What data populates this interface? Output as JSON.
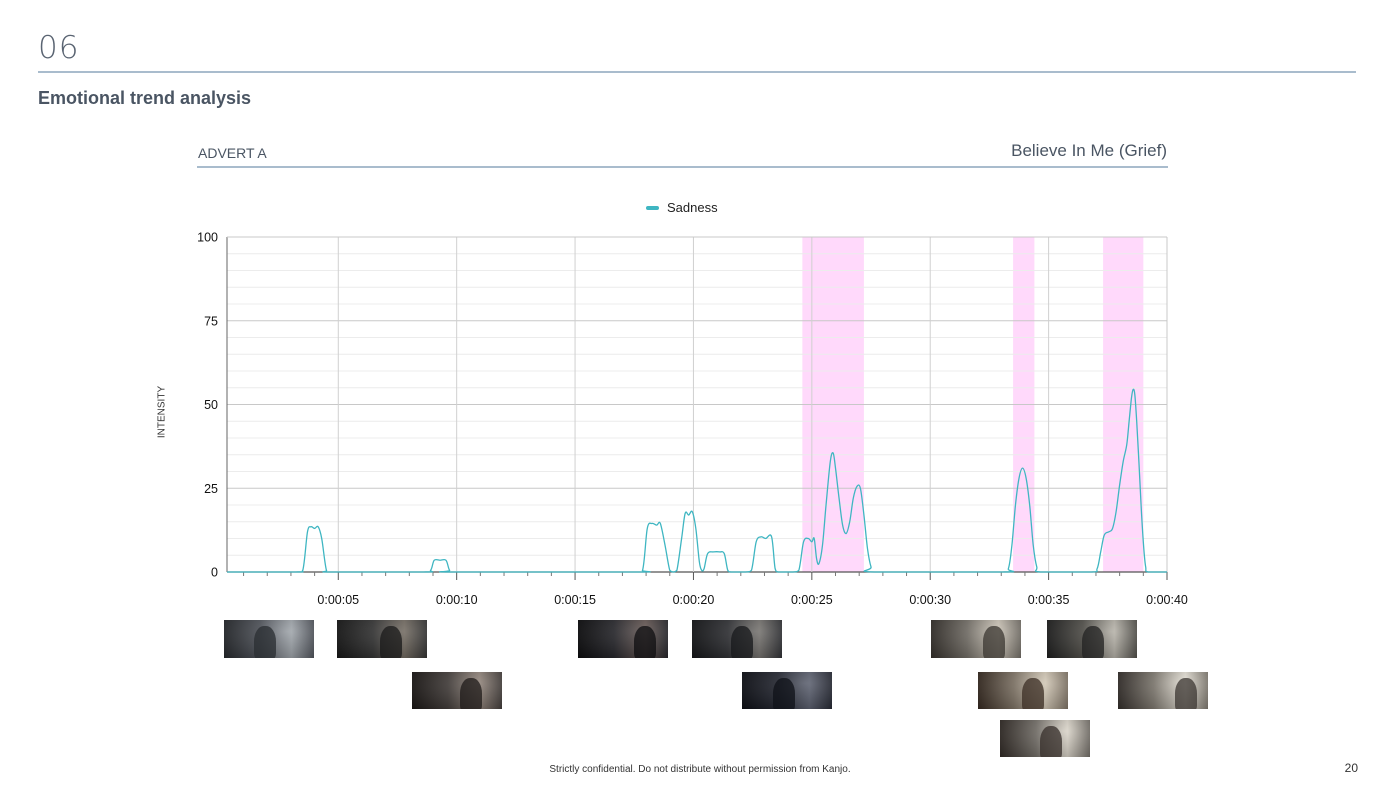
{
  "header": {
    "section_number": "06",
    "page_heading": "Emotional trend analysis"
  },
  "advert": {
    "label": "ADVERT A",
    "title": "Believe In Me (Grief)"
  },
  "colors": {
    "series": "#3fb6c2",
    "highlight": "#ffd9fb",
    "rule": "#a9bccd"
  },
  "chart_data": {
    "type": "line",
    "title": "",
    "xlabel": "",
    "ylabel": "INTENSITY",
    "ylim": [
      0,
      100
    ],
    "yticks": [
      0,
      25,
      50,
      75,
      100
    ],
    "xlim": [
      0.3,
      40
    ],
    "xtick_labels": [
      {
        "t": 5,
        "label": "0:00:05"
      },
      {
        "t": 10,
        "label": "0:00:10"
      },
      {
        "t": 15,
        "label": "0:00:15"
      },
      {
        "t": 20,
        "label": "0:00:20"
      },
      {
        "t": 25,
        "label": "0:00:25"
      },
      {
        "t": 30,
        "label": "0:00:30"
      },
      {
        "t": 35,
        "label": "0:00:35"
      },
      {
        "t": 40,
        "label": "0:00:40"
      }
    ],
    "grid": true,
    "legend": "top-center",
    "highlight_ranges": [
      [
        24.6,
        27.2
      ],
      [
        33.5,
        34.4
      ],
      [
        37.3,
        39.0
      ]
    ],
    "series": [
      {
        "name": "Sadness",
        "points": [
          [
            0.3,
            0
          ],
          [
            3.2,
            0
          ],
          [
            3.5,
            0.5
          ],
          [
            3.7,
            12
          ],
          [
            3.85,
            13.5
          ],
          [
            4.0,
            13
          ],
          [
            4.15,
            13.5
          ],
          [
            4.3,
            10
          ],
          [
            4.5,
            0.5
          ],
          [
            4.7,
            0
          ],
          [
            8.6,
            0
          ],
          [
            8.9,
            0.5
          ],
          [
            9.05,
            3.5
          ],
          [
            9.3,
            3.5
          ],
          [
            9.55,
            3.5
          ],
          [
            9.7,
            0.5
          ],
          [
            9.9,
            0
          ],
          [
            17.5,
            0
          ],
          [
            17.85,
            0.5
          ],
          [
            18.05,
            13
          ],
          [
            18.25,
            14.5
          ],
          [
            18.45,
            14
          ],
          [
            18.6,
            14.5
          ],
          [
            18.8,
            8
          ],
          [
            19.0,
            0.5
          ],
          [
            19.15,
            0
          ],
          [
            19.3,
            0.5
          ],
          [
            19.5,
            10
          ],
          [
            19.65,
            17.5
          ],
          [
            19.8,
            17
          ],
          [
            19.95,
            18
          ],
          [
            20.1,
            13
          ],
          [
            20.25,
            3
          ],
          [
            20.35,
            0.5
          ],
          [
            20.45,
            1
          ],
          [
            20.6,
            5.5
          ],
          [
            20.85,
            6
          ],
          [
            21.1,
            6
          ],
          [
            21.3,
            5.5
          ],
          [
            21.45,
            0.5
          ],
          [
            21.6,
            0
          ],
          [
            22.2,
            0
          ],
          [
            22.45,
            0.5
          ],
          [
            22.65,
            9
          ],
          [
            22.85,
            10.5
          ],
          [
            23.05,
            10
          ],
          [
            23.3,
            10.5
          ],
          [
            23.45,
            1
          ],
          [
            23.6,
            0
          ],
          [
            24.2,
            0
          ],
          [
            24.45,
            0.5
          ],
          [
            24.65,
            9
          ],
          [
            24.85,
            10
          ],
          [
            25.0,
            9
          ],
          [
            25.1,
            10
          ],
          [
            25.2,
            4
          ],
          [
            25.3,
            2.5
          ],
          [
            25.45,
            8
          ],
          [
            25.6,
            20
          ],
          [
            25.78,
            33
          ],
          [
            25.9,
            35.5
          ],
          [
            26.0,
            31
          ],
          [
            26.15,
            22
          ],
          [
            26.3,
            14
          ],
          [
            26.45,
            11.5
          ],
          [
            26.6,
            15
          ],
          [
            26.75,
            22
          ],
          [
            26.9,
            25.5
          ],
          [
            27.05,
            25
          ],
          [
            27.2,
            17
          ],
          [
            27.35,
            7
          ],
          [
            27.5,
            1.5
          ],
          [
            27.65,
            0
          ],
          [
            33.05,
            0
          ],
          [
            33.3,
            1
          ],
          [
            33.45,
            8
          ],
          [
            33.6,
            20
          ],
          [
            33.75,
            28
          ],
          [
            33.9,
            31
          ],
          [
            34.05,
            28
          ],
          [
            34.2,
            20
          ],
          [
            34.35,
            8
          ],
          [
            34.5,
            1.5
          ],
          [
            34.65,
            0
          ],
          [
            36.8,
            0
          ],
          [
            37.05,
            1
          ],
          [
            37.2,
            6
          ],
          [
            37.35,
            11
          ],
          [
            37.55,
            12
          ],
          [
            37.7,
            13
          ],
          [
            37.85,
            18
          ],
          [
            38.0,
            26
          ],
          [
            38.15,
            33
          ],
          [
            38.3,
            38
          ],
          [
            38.4,
            45
          ],
          [
            38.5,
            52
          ],
          [
            38.57,
            54.5
          ],
          [
            38.64,
            53
          ],
          [
            38.72,
            45
          ],
          [
            38.82,
            32
          ],
          [
            38.92,
            18
          ],
          [
            39.02,
            7
          ],
          [
            39.1,
            1.5
          ],
          [
            39.2,
            0
          ],
          [
            40.0,
            0
          ]
        ]
      }
    ]
  },
  "thumbnails": [
    {
      "id": "scene-1",
      "palette": [
        "#4a4e56",
        "#9aa0a6",
        "#2a2d31"
      ]
    },
    {
      "id": "scene-2",
      "palette": [
        "#2b2b2b",
        "#6a6258",
        "#1a1a1a"
      ]
    },
    {
      "id": "scene-3",
      "palette": [
        "#1d1d22",
        "#5b4c48",
        "#0e0e10"
      ]
    },
    {
      "id": "scene-4",
      "palette": [
        "#27282c",
        "#6d6a66",
        "#17181b"
      ]
    },
    {
      "id": "scene-5",
      "palette": [
        "#6f6a62",
        "#c8c0b2",
        "#3a3530"
      ]
    },
    {
      "id": "scene-6",
      "palette": [
        "#4b4943",
        "#b2aea4",
        "#222"
      ]
    },
    {
      "id": "scene-7",
      "palette": [
        "#3b3532",
        "#8a7c72",
        "#1e1a18"
      ]
    },
    {
      "id": "scene-8",
      "palette": [
        "#1c1f2a",
        "#525767",
        "#0f1118"
      ]
    },
    {
      "id": "scene-9",
      "palette": [
        "#7c7061",
        "#d0c5b2",
        "#3b2e24"
      ]
    },
    {
      "id": "scene-10",
      "palette": [
        "#7d776d",
        "#e2ddd2",
        "#3a3430"
      ]
    },
    {
      "id": "scene-11",
      "palette": [
        "#6f6a63",
        "#d8d2c6",
        "#352e29"
      ]
    }
  ],
  "footer": {
    "confidential": "Strictly confidential. Do not distribute without permission from Kanjo.",
    "page_number": "20"
  }
}
